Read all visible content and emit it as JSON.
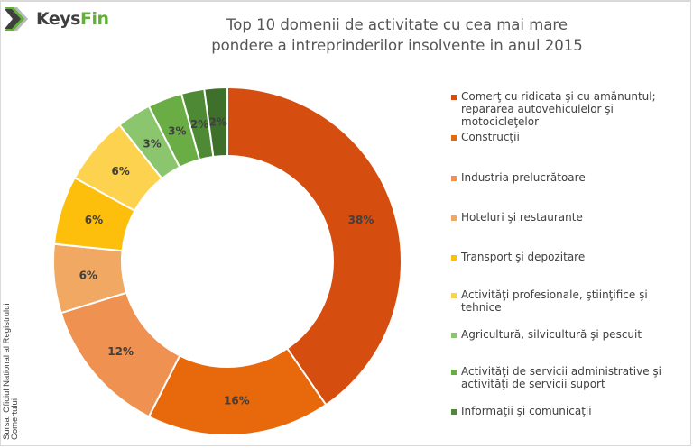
{
  "logo": {
    "part1": "Keys",
    "part2": "Fin"
  },
  "source": {
    "line1": "Sursa: Oficiul National al Registrului",
    "line2": "Comertului"
  },
  "chart_data": {
    "type": "pie",
    "variant": "donut",
    "title": [
      "Top 10 domenii de activitate cu cea mai mare",
      "pondere a intreprinderilor insolvente in anul 2015"
    ],
    "legend_position": "right",
    "start": "top",
    "direction": "clockwise",
    "slices": [
      {
        "label": "Comerţ cu ridicata şi cu amănuntul; repararea autovehiculelor şi motocicleţelor",
        "value": 38,
        "display": "38%",
        "color": "#d54e0f"
      },
      {
        "label": "Construcţii",
        "value": 16,
        "display": "16%",
        "color": "#e8690c"
      },
      {
        "label": "Industria prelucrătoare",
        "value": 12,
        "display": "12%",
        "color": "#ee9151"
      },
      {
        "label": "Hoteluri şi restaurante",
        "value": 6,
        "display": "6%",
        "color": "#f0a862"
      },
      {
        "label": "Transport şi depozitare",
        "value": 6,
        "display": "6%",
        "color": "#fdbf0c"
      },
      {
        "label": "Activităţi profesionale, ştiinţifice şi tehnice",
        "value": 6,
        "display": "6%",
        "color": "#fdd24f"
      },
      {
        "label": "Agricultură, silvicultură şi pescuit",
        "value": 3,
        "display": "3%",
        "color": "#8bc56e"
      },
      {
        "label": "Activităţi de servicii administrative şi activităţi de servicii suport",
        "value": 3,
        "display": "3%",
        "color": "#6aad45"
      },
      {
        "label": "Informaţii şi comunicaţii",
        "value": 2,
        "display": "2%",
        "color": "#4e8a35"
      },
      {
        "label": "",
        "value": 2,
        "display": "2%",
        "color": "#3e6f2b"
      }
    ]
  }
}
